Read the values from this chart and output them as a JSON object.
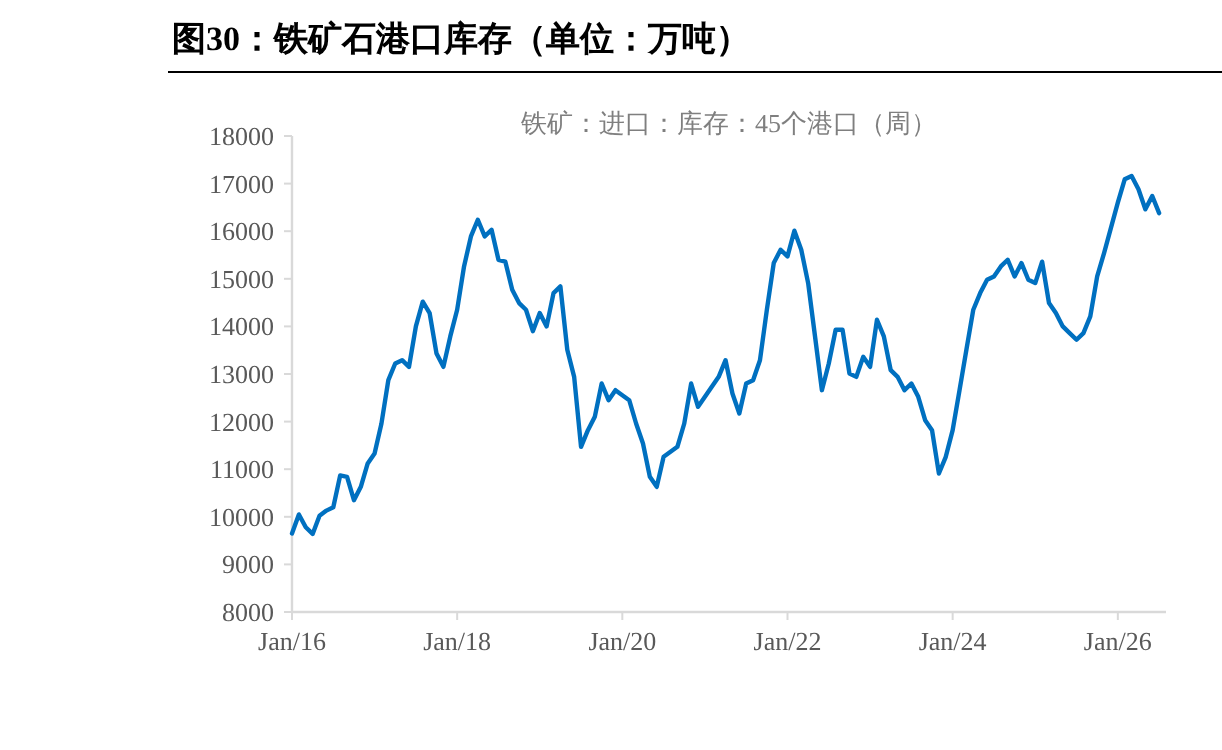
{
  "chart_data": {
    "type": "line",
    "title": "图30：铁矿石港口库存（单位：万吨）",
    "subtitle": "铁矿：进口：库存：45个港口（周）",
    "x": [
      "2016-01",
      "2016-02",
      "2016-03",
      "2016-04",
      "2016-05",
      "2016-06",
      "2016-07",
      "2016-08",
      "2016-09",
      "2016-10",
      "2016-11",
      "2016-12",
      "2017-01",
      "2017-02",
      "2017-03",
      "2017-04",
      "2017-05",
      "2017-06",
      "2017-07",
      "2017-08",
      "2017-09",
      "2017-10",
      "2017-11",
      "2017-12",
      "2018-01",
      "2018-02",
      "2018-03",
      "2018-04",
      "2018-05",
      "2018-06",
      "2018-07",
      "2018-08",
      "2018-09",
      "2018-10",
      "2018-11",
      "2018-12",
      "2019-01",
      "2019-02",
      "2019-03",
      "2019-04",
      "2019-05",
      "2019-06",
      "2019-07",
      "2019-08",
      "2019-09",
      "2019-10",
      "2019-11",
      "2019-12",
      "2020-02",
      "2020-03",
      "2020-04",
      "2020-05",
      "2020-06",
      "2020-07",
      "2020-09",
      "2020-10",
      "2020-11",
      "2020-12",
      "2021-01",
      "2021-03",
      "2021-04",
      "2021-05",
      "2021-06",
      "2021-07",
      "2021-08",
      "2021-09",
      "2021-10",
      "2021-11",
      "2021-12",
      "2022-01",
      "2022-02",
      "2022-03",
      "2022-04",
      "2022-05",
      "2022-06",
      "2022-07",
      "2022-08",
      "2022-09",
      "2022-10",
      "2022-11",
      "2022-12",
      "2023-01",
      "2023-02",
      "2023-03",
      "2023-04",
      "2023-05",
      "2023-06",
      "2023-07",
      "2023-08",
      "2023-09",
      "2023-10",
      "2023-11",
      "2023-12",
      "2024-01",
      "2024-02",
      "2024-03",
      "2024-04",
      "2024-05",
      "2024-06",
      "2024-07",
      "2024-08",
      "2024-09",
      "2024-10",
      "2024-11",
      "2024-12",
      "2025-01",
      "2025-02",
      "2025-03",
      "2025-04",
      "2025-05",
      "2025-06",
      "2025-07",
      "2025-08",
      "2025-09",
      "2025-10",
      "2025-11",
      "2026-01",
      "2026-02",
      "2026-03",
      "2026-04",
      "2026-05",
      "2026-06",
      "2026-07"
    ],
    "series": [
      {
        "color": "#0070c0",
        "values": [
          9650,
          10050,
          9780,
          9640,
          10020,
          10130,
          10200,
          10870,
          10840,
          10350,
          10630,
          11120,
          11330,
          11960,
          12870,
          13220,
          13290,
          13150,
          14000,
          14520,
          14280,
          13430,
          13150,
          13790,
          14350,
          15260,
          15890,
          16240,
          15890,
          16030,
          15400,
          15360,
          14770,
          14490,
          14350,
          13900,
          14280,
          14000,
          14700,
          14840,
          13510,
          12940,
          11470,
          11820,
          12100,
          12800,
          12450,
          12660,
          12450,
          11960,
          11540,
          10840,
          10630,
          11260,
          11470,
          11960,
          12800,
          12310,
          12520,
          12940,
          13290,
          12590,
          12170,
          12800,
          12870,
          13290,
          14350,
          15330,
          15610,
          15470,
          16010,
          15610,
          14910,
          13790,
          12660,
          13220,
          13930,
          13930,
          13010,
          12940,
          13360,
          13150,
          14140,
          13790,
          13080,
          12940,
          12660,
          12800,
          12520,
          12030,
          11820,
          10910,
          11260,
          11820,
          12660,
          13510,
          14350,
          14700,
          14980,
          15050,
          15260,
          15400,
          15050,
          15330,
          14980,
          14910,
          15360,
          14490,
          14280,
          14000,
          13860,
          13720,
          13860,
          14210,
          15050,
          15540,
          16600,
          17090,
          17160,
          16880,
          16460,
          16740,
          16380
        ]
      }
    ],
    "xlim": [
      "2016-01",
      "2026-08"
    ],
    "xticks": [
      {
        "value": "2016-01",
        "label": "Jan/16"
      },
      {
        "value": "2018-01",
        "label": "Jan/18"
      },
      {
        "value": "2020-01",
        "label": "Jan/20"
      },
      {
        "value": "2022-01",
        "label": "Jan/22"
      },
      {
        "value": "2024-01",
        "label": "Jan/24"
      },
      {
        "value": "2026-01",
        "label": "Jan/26"
      }
    ],
    "ylim": [
      8000,
      18000
    ],
    "yticks": [
      8000,
      9000,
      10000,
      11000,
      12000,
      13000,
      14000,
      15000,
      16000,
      17000,
      18000
    ]
  }
}
